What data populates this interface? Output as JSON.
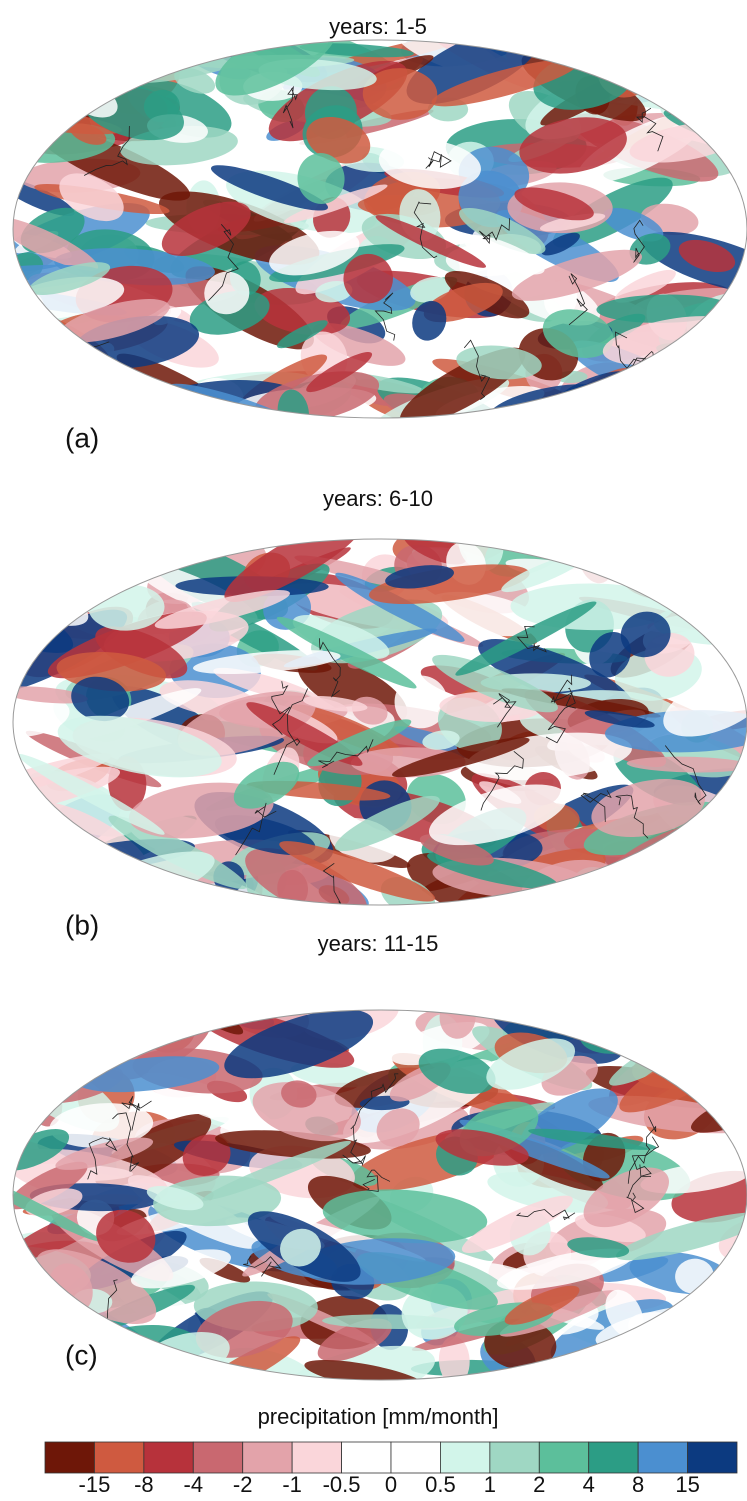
{
  "panels": [
    {
      "title": "years: 1-5",
      "label": "(a)"
    },
    {
      "title": "years: 6-10",
      "label": "(b)"
    },
    {
      "title": "years: 11-15",
      "label": "(c)"
    }
  ],
  "colorbar": {
    "label": "precipitation [mm/month]",
    "colors": [
      "#6e1708",
      "#cf5a40",
      "#b7323b",
      "#c96870",
      "#e3a3aa",
      "#fad6da",
      "#ffffff",
      "#ffffff",
      "#d2f5ea",
      "#9fd7c3",
      "#5cbf9b",
      "#2c9d85",
      "#4b8fd0",
      "#0c3a80"
    ],
    "ticks": [
      -15,
      -8,
      -4,
      -2,
      -1,
      -0.5,
      0,
      0.5,
      1,
      2,
      4,
      8,
      15
    ]
  }
}
